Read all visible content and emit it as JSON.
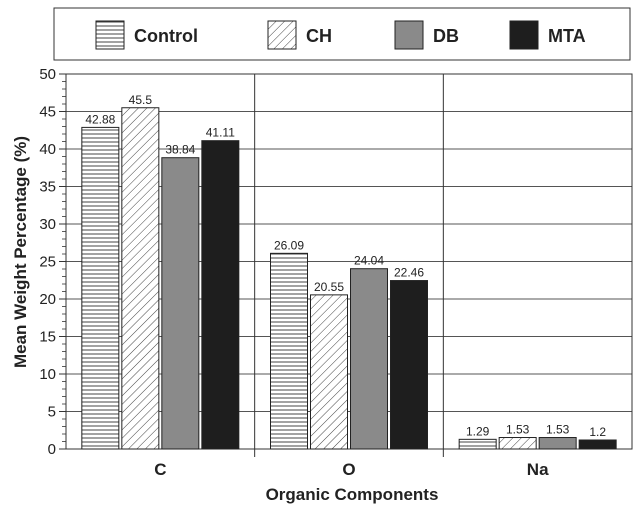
{
  "chart_data": {
    "type": "bar",
    "categories": [
      "C",
      "O",
      "Na"
    ],
    "series": [
      {
        "name": "Control",
        "values": [
          42.88,
          26.09,
          1.29
        ]
      },
      {
        "name": "CH",
        "values": [
          45.5,
          20.55,
          1.53
        ]
      },
      {
        "name": "DB",
        "values": [
          38.84,
          24.04,
          1.53
        ]
      },
      {
        "name": "MTA",
        "values": [
          41.11,
          22.46,
          1.2
        ]
      }
    ],
    "data_labels": [
      [
        "42.88",
        "26.09",
        "1.29"
      ],
      [
        "45.5",
        "20.55",
        "1.53"
      ],
      [
        "38.84",
        "24.04",
        "1.53"
      ],
      [
        "41.11",
        "22.46",
        "1.2"
      ]
    ],
    "xlabel": "Organic Components",
    "ylabel": "Mean Weight Percentage (%)",
    "ylim": [
      0,
      50
    ],
    "yticks": [
      "0",
      "5",
      "10",
      "15",
      "20",
      "25",
      "30",
      "35",
      "40",
      "45",
      "50"
    ],
    "grid": true,
    "legend_position": "top",
    "series_styles": [
      "horizontal-hatch",
      "diagonal-hatch",
      "gray",
      "black"
    ],
    "colors": {
      "DB": "#8a8a8a",
      "MTA": "#1e1e1e",
      "hatch": "#444444"
    }
  }
}
